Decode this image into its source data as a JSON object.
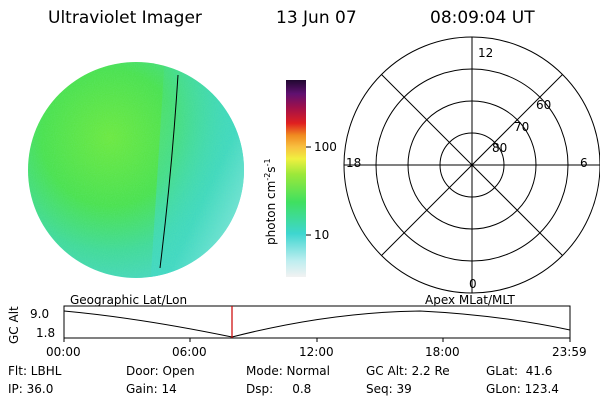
{
  "header": {
    "instrument": "Ultraviolet Imager",
    "date": "13 Jun 07",
    "time": "08:09:04 UT"
  },
  "colorbar": {
    "label": "photon cm",
    "label_exp1": "-2",
    "label_mid": "s",
    "label_exp2": "-1",
    "ticks": [
      "100",
      "10"
    ],
    "scale": "log"
  },
  "polar_plot": {
    "clock_labels": [
      "12",
      "18",
      "6",
      "0"
    ],
    "lat_labels": [
      "60",
      "70",
      "80"
    ]
  },
  "timeline": {
    "left_label": "Geographic Lat/Lon",
    "right_label": "Apex MLat/MLT",
    "y_axis_label": "GC Alt",
    "y_ticks": [
      "9.0",
      "1.8"
    ],
    "x_ticks": [
      "00:00",
      "06:00",
      "12:00",
      "18:00",
      "23:59"
    ],
    "current_marker_color": "#cc0000"
  },
  "info": {
    "flt": "Flt: LBHL",
    "door": "Door: Open",
    "mode": "Mode: Normal",
    "gc_alt": "GC Alt: 2.2 Re",
    "glat": "GLat:  41.6",
    "ip": "IP: 36.0",
    "gain": "Gain: 14",
    "dsp": "Dsp:     0.8",
    "seq": "Seq: 39",
    "glon": "GLon: 123.4"
  },
  "colors": {
    "disk_green": "#4fe63a",
    "disk_cyan": "#3ed6c8",
    "disk_light": "#bfeff0"
  }
}
